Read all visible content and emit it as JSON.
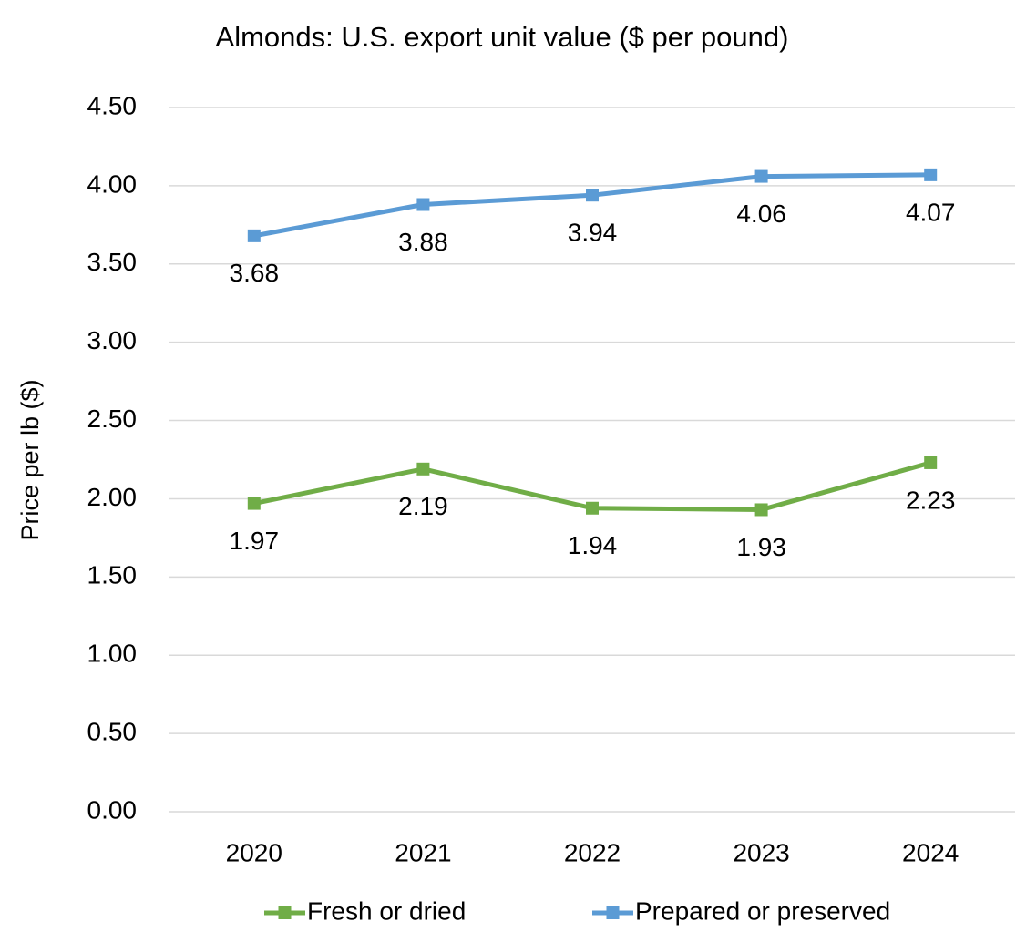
{
  "chart_data": {
    "type": "line",
    "title": "Almonds: U.S. export unit value ($ per pound)",
    "y_label": "Price per lb ($)",
    "categories": [
      "2020",
      "2021",
      "2022",
      "2023",
      "2024"
    ],
    "series": [
      {
        "name": "Fresh or dried",
        "color": "#70ad47",
        "values": [
          1.97,
          2.19,
          1.94,
          1.93,
          2.23
        ]
      },
      {
        "name": "Prepared or preserved",
        "color": "#5b9bd5",
        "values": [
          3.68,
          3.88,
          3.94,
          4.06,
          4.07
        ]
      }
    ],
    "ylim": [
      0,
      4.5
    ],
    "yticks": [
      {
        "value": 0,
        "label": "0.00"
      },
      {
        "value": 0.5,
        "label": "0.50"
      },
      {
        "value": 1,
        "label": "1.00"
      },
      {
        "value": 1.5,
        "label": "1.50"
      },
      {
        "value": 2,
        "label": "2.00"
      },
      {
        "value": 2.5,
        "label": "2.50"
      },
      {
        "value": 3,
        "label": "3.00"
      },
      {
        "value": 3.5,
        "label": "3.50"
      },
      {
        "value": 4,
        "label": "4.00"
      },
      {
        "value": 4.5,
        "label": "4.50"
      }
    ],
    "grid": true,
    "legend": "bottom",
    "data_labels": true
  }
}
